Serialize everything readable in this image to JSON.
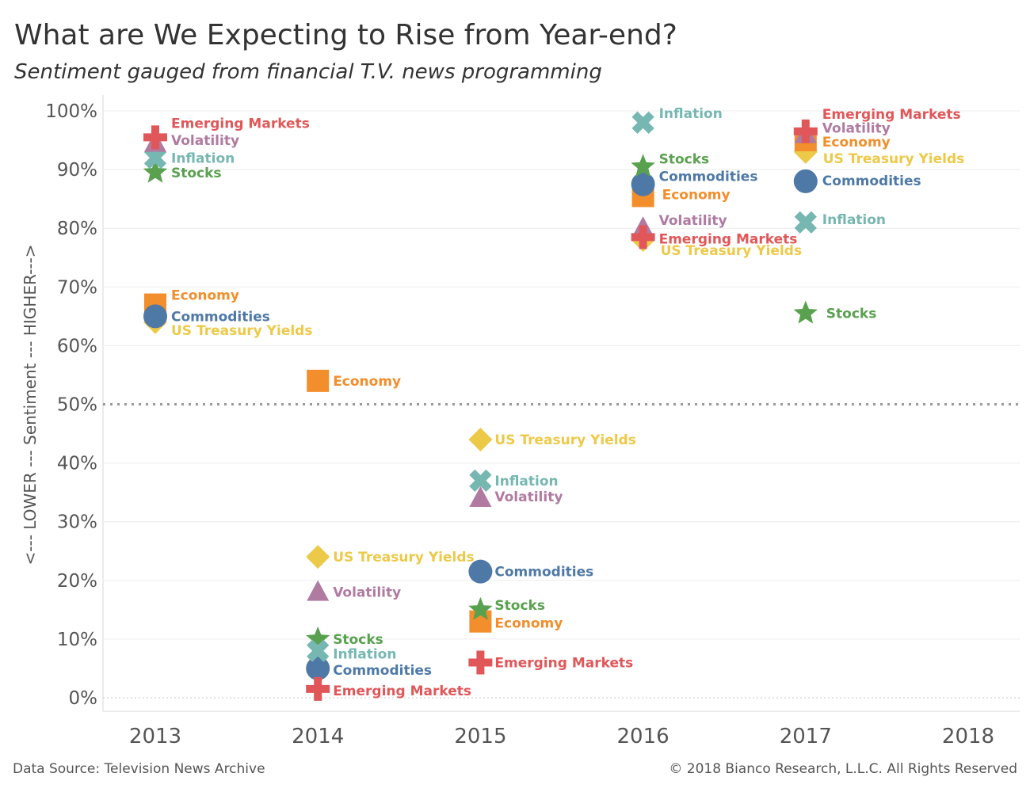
{
  "title": "What are We Expecting to Rise from Year-end?",
  "subtitle": "Sentiment gauged from financial T.V. news programming",
  "footer": {
    "source": "Data Source: Television News Archive",
    "copyright": "© 2018 Bianco Research, L.L.C. All Rights Reserved"
  },
  "colors": {
    "Stocks": "#59a14f",
    "Inflation": "#76b7b2",
    "Volatility": "#b07aa1",
    "Emerging Markets": "#e15759",
    "Economy": "#f28e2b",
    "Commodities": "#4e79a7",
    "US Treasury Yields": "#edc948"
  },
  "icons": {
    "Stocks": "star",
    "Inflation": "cross-x",
    "Volatility": "triangle",
    "Emerging Markets": "plus",
    "Economy": "square",
    "Commodities": "circle",
    "US Treasury Yields": "diamond"
  },
  "chart_data": {
    "type": "scatter",
    "title": "What are We Expecting to Rise from Year-end?",
    "subtitle": "Sentiment gauged from financial T.V. news programming",
    "ylabel": "<--- LOWER --- Sentiment --- HIGHER--->",
    "xlabel": "",
    "x_ticks": [
      "2013",
      "2014",
      "2015",
      "2016",
      "2017",
      "2018"
    ],
    "y_ticks": [
      "0%",
      "10%",
      "20%",
      "30%",
      "40%",
      "50%",
      "60%",
      "70%",
      "80%",
      "90%",
      "100%"
    ],
    "ylim": [
      0,
      100
    ],
    "reference_line": 50,
    "grid": true,
    "series": [
      {
        "name": "Stocks",
        "points": [
          [
            2013,
            89.5
          ],
          [
            2014,
            10
          ],
          [
            2015,
            15
          ],
          [
            2016,
            90.5
          ],
          [
            2017,
            65.5
          ]
        ]
      },
      {
        "name": "Inflation",
        "points": [
          [
            2013,
            92
          ],
          [
            2014,
            8
          ],
          [
            2015,
            37
          ],
          [
            2016,
            98
          ],
          [
            2017,
            81
          ]
        ]
      },
      {
        "name": "Volatility",
        "points": [
          [
            2013,
            94.5
          ],
          [
            2014,
            18
          ],
          [
            2015,
            34
          ],
          [
            2016,
            80
          ],
          [
            2017,
            96
          ]
        ]
      },
      {
        "name": "Emerging Markets",
        "points": [
          [
            2013,
            95.5
          ],
          [
            2014,
            1.5
          ],
          [
            2015,
            6
          ],
          [
            2016,
            78.5
          ],
          [
            2017,
            96.5
          ]
        ]
      },
      {
        "name": "Economy",
        "points": [
          [
            2013,
            67
          ],
          [
            2014,
            54
          ],
          [
            2015,
            13
          ],
          [
            2016,
            85.5
          ],
          [
            2017,
            95
          ]
        ]
      },
      {
        "name": "Commodities",
        "points": [
          [
            2013,
            65
          ],
          [
            2014,
            5
          ],
          [
            2015,
            21.5
          ],
          [
            2016,
            87.5
          ],
          [
            2017,
            88
          ]
        ]
      },
      {
        "name": "US Treasury Yields",
        "points": [
          [
            2013,
            64
          ],
          [
            2014,
            24
          ],
          [
            2015,
            44
          ],
          [
            2016,
            78
          ],
          [
            2017,
            93
          ]
        ]
      }
    ]
  }
}
